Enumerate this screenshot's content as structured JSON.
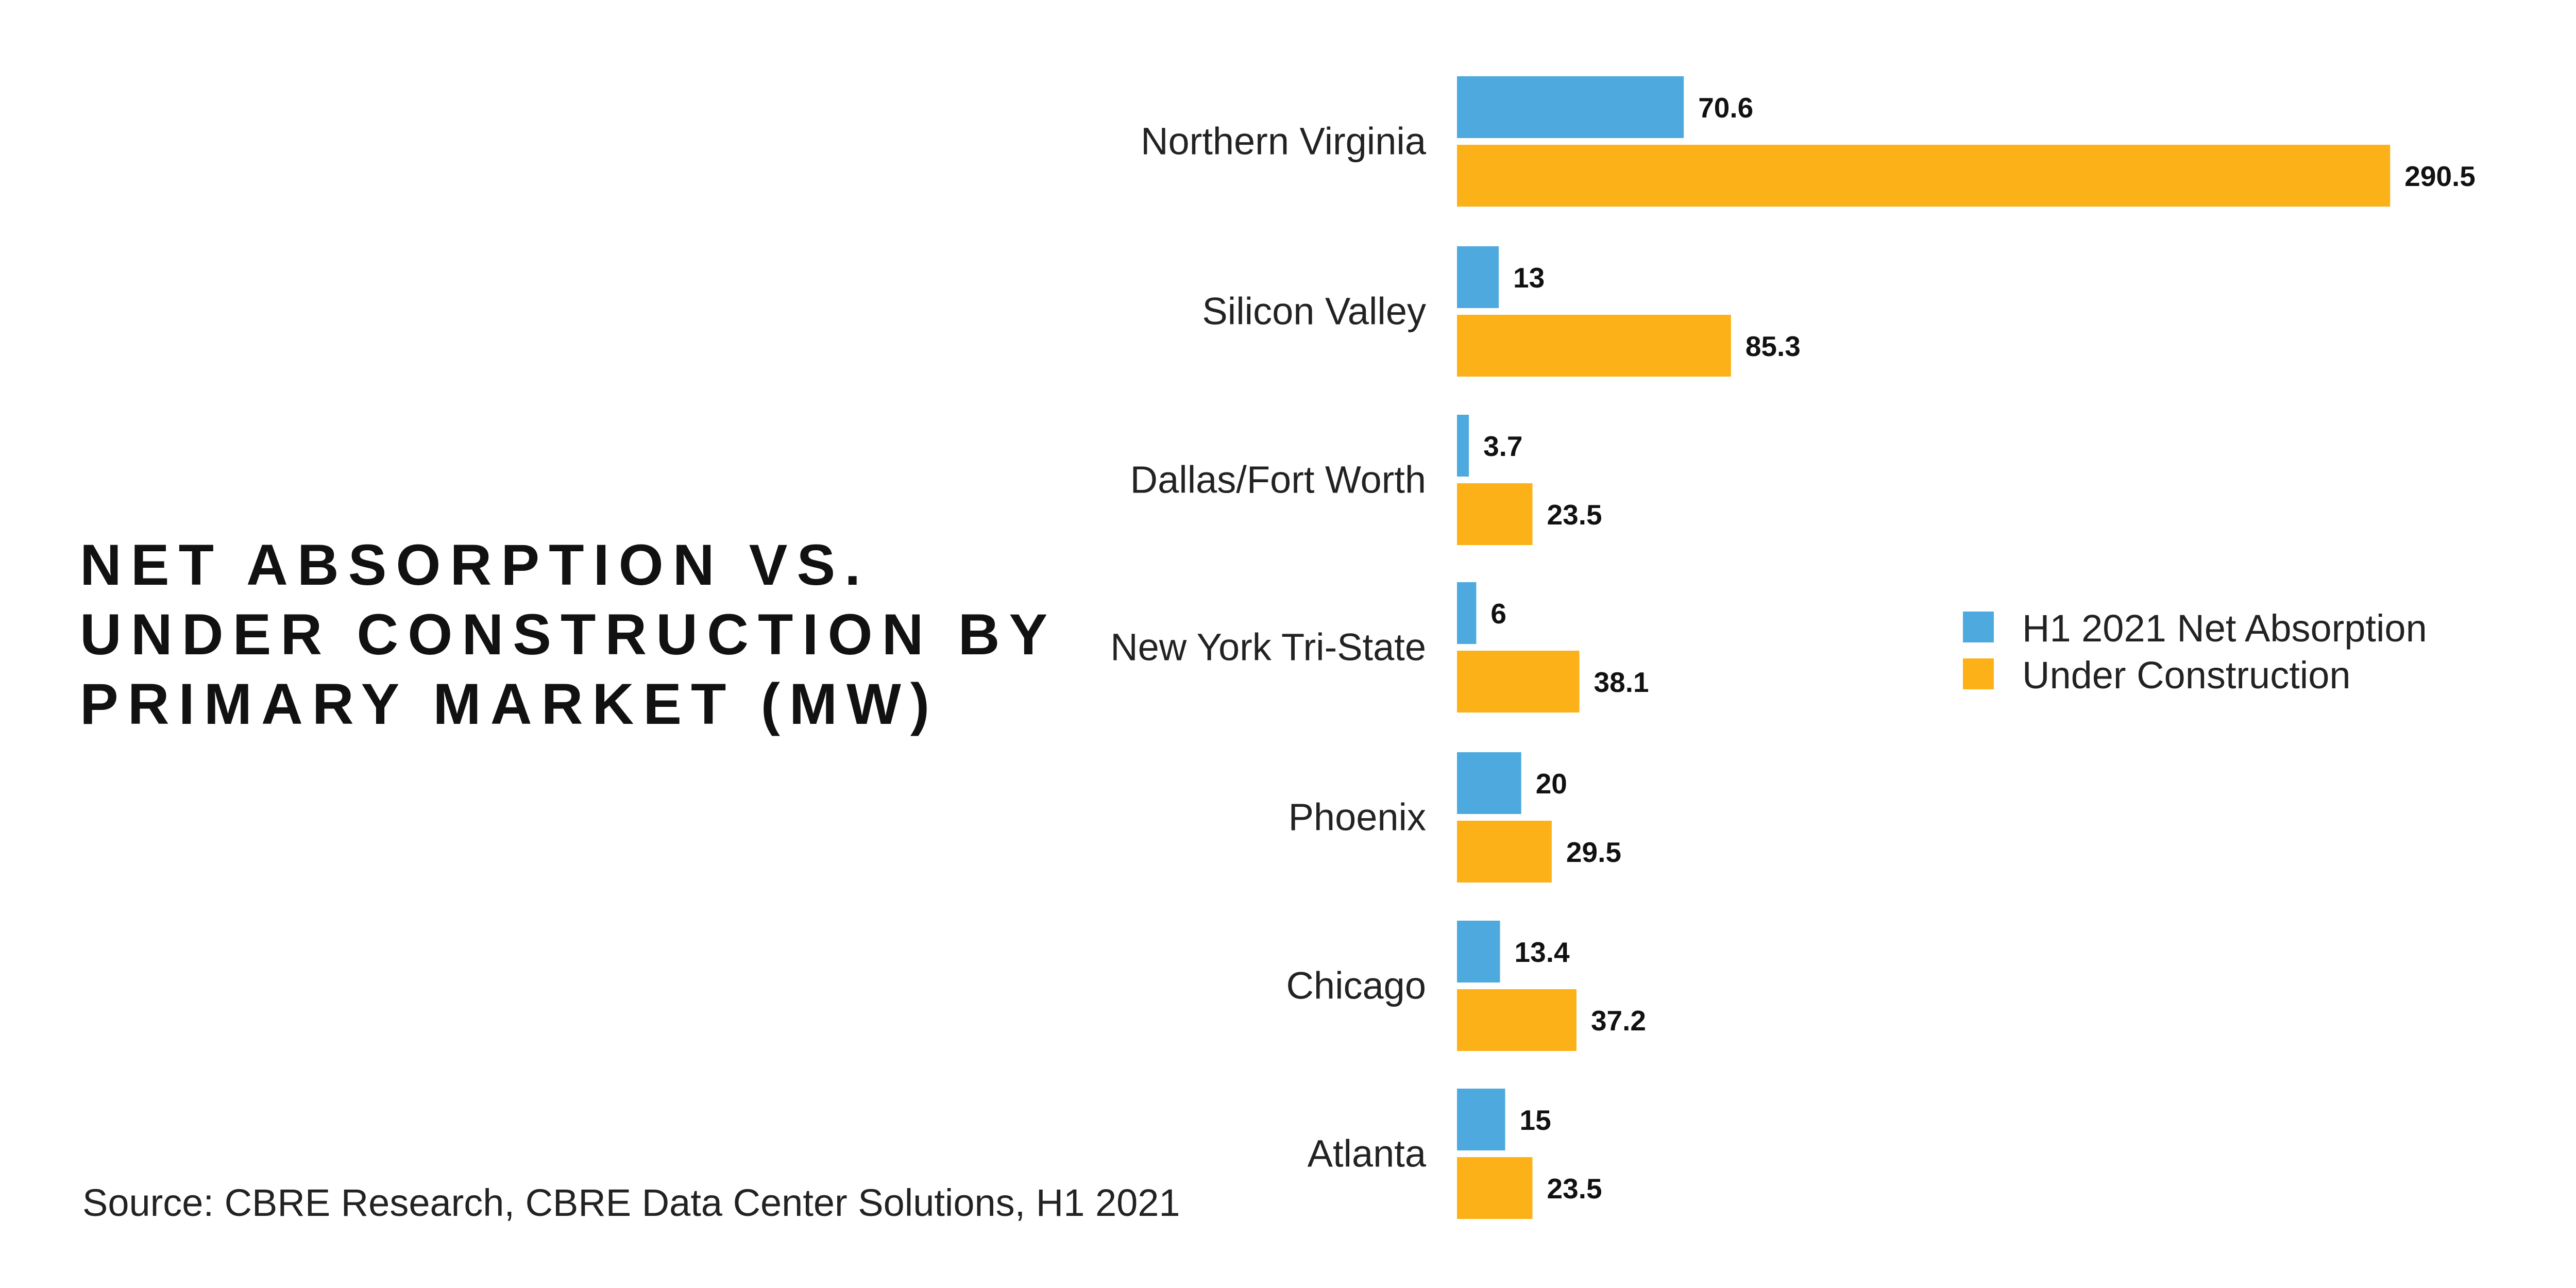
{
  "chart_data": {
    "type": "bar",
    "orientation": "horizontal",
    "title_lines": [
      "NET ABSORPTION VS.",
      "UNDER CONSTRUCTION BY",
      "PRIMARY MARKET (MW)"
    ],
    "categories": [
      "Northern Virginia",
      "Silicon Valley",
      "Dallas/Fort Worth",
      "New York Tri-State",
      "Phoenix",
      "Chicago",
      "Atlanta"
    ],
    "series": [
      {
        "name": "H1 2021 Net Absorption",
        "color": "#4eaade",
        "values": [
          70.6,
          13,
          3.7,
          6,
          20,
          13.4,
          15
        ]
      },
      {
        "name": "Under Construction",
        "color": "#fdb118",
        "values": [
          290.5,
          85.3,
          23.5,
          38.1,
          29.5,
          37.2,
          23.5
        ]
      }
    ],
    "xlim": [
      0,
      300
    ],
    "grid": false,
    "legend_position": "right",
    "source": "Source: CBRE Research, CBRE Data Center Solutions, H1 2021"
  }
}
